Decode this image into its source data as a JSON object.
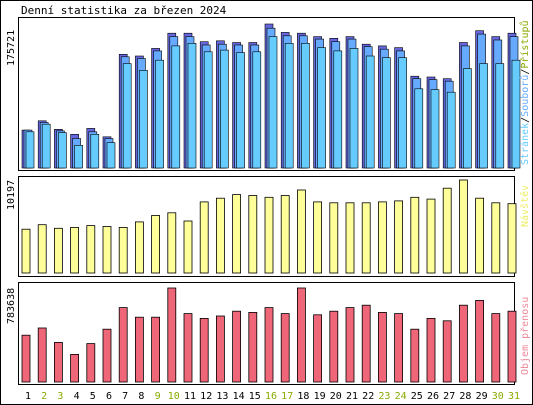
{
  "chart_data": {
    "type": "bar",
    "title": "Denní statistika za březen 2024",
    "categories": [
      "1",
      "2",
      "3",
      "4",
      "5",
      "6",
      "7",
      "8",
      "9",
      "10",
      "11",
      "12",
      "13",
      "14",
      "15",
      "16",
      "17",
      "18",
      "19",
      "20",
      "21",
      "22",
      "23",
      "24",
      "25",
      "26",
      "27",
      "28",
      "29",
      "30",
      "31"
    ],
    "weekend_days": [
      "2",
      "3",
      "9",
      "10",
      "16",
      "17",
      "23",
      "24",
      "30",
      "31"
    ],
    "colors": {
      "pristupu": "#6666dd",
      "souboru": "#66aaff",
      "stranek": "#66ccff",
      "navstev": "#ffff99",
      "prenos": "#ee6677",
      "weekday_label": "#000000",
      "weekend_label": "#88aa00",
      "frame": "#000000"
    },
    "panels": [
      {
        "name": "hits",
        "ymax_label": "175721",
        "ymax": 175721,
        "legend": [
          "Stránek",
          "Souborů",
          "Přístupů"
        ],
        "legend_separator": "/",
        "series": [
          {
            "name": "Přístupů",
            "values": [
              45000,
              56000,
              46000,
              40000,
              47000,
              37000,
              135000,
              133000,
              142000,
              160000,
              160000,
              150000,
              151000,
              149000,
              149000,
              171000,
              161000,
              160000,
              156000,
              154000,
              156000,
              147000,
              145000,
              143000,
              109000,
              108000,
              106000,
              149000,
              163000,
              156000,
              160000
            ]
          },
          {
            "name": "Souborů",
            "values": [
              45000,
              54000,
              44000,
              35000,
              43000,
              35000,
              132000,
              130000,
              139000,
              156000,
              156000,
              146000,
              147000,
              146000,
              146000,
              166000,
              157000,
              157000,
              153000,
              150000,
              153000,
              144000,
              141000,
              139000,
              106000,
              105000,
              103000,
              145000,
              159000,
              152000,
              156000
            ]
          },
          {
            "name": "Stránek",
            "values": [
              43000,
              52000,
              42000,
              27000,
              40000,
              30000,
              124000,
              116000,
              128000,
              145000,
              148000,
              138000,
              140000,
              137000,
              138000,
              156000,
              148000,
              148000,
              143000,
              139000,
              142000,
              133000,
              131000,
              131000,
              94000,
              93000,
              90000,
              118000,
              124000,
              124000,
              128000
            ]
          }
        ]
      },
      {
        "name": "visits",
        "ymax_label": "10197",
        "ymax": 10197,
        "legend": [
          "Návštěv"
        ],
        "series": [
          {
            "name": "Návštěv",
            "values": [
              4800,
              5300,
              4900,
              5000,
              5200,
              5100,
              5000,
              5600,
              6300,
              6600,
              5700,
              7800,
              8200,
              8600,
              8500,
              8300,
              8500,
              9100,
              7800,
              7700,
              7700,
              7700,
              7800,
              7900,
              8300,
              8100,
              9300,
              10197,
              8200,
              7700,
              7600
            ]
          }
        ]
      },
      {
        "name": "traffic",
        "ymax_label": "783638",
        "ymax": 783638,
        "legend": [
          "Objem přenosu"
        ],
        "series": [
          {
            "name": "Objem přenosu",
            "values": [
              390000,
              450000,
              330000,
              230000,
              320000,
              440000,
              620000,
              540000,
              540000,
              783638,
              570000,
              530000,
              550000,
              590000,
              580000,
              620000,
              570000,
              783638,
              560000,
              590000,
              620000,
              640000,
              580000,
              570000,
              440000,
              530000,
              510000,
              640000,
              680000,
              570000,
              590000
            ]
          }
        ]
      }
    ]
  }
}
